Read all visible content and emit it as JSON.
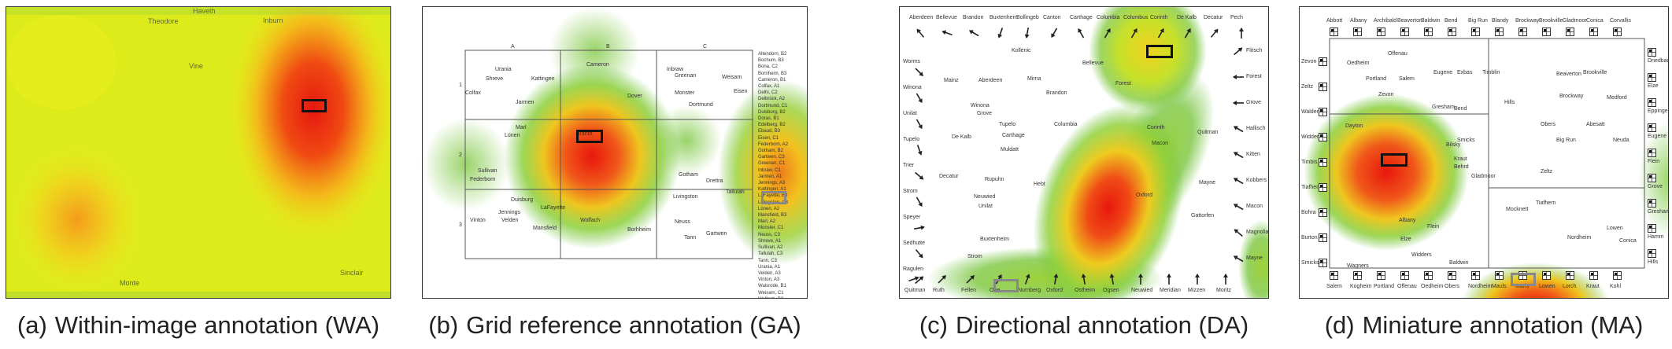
{
  "captions": {
    "a": {
      "tag": "(a)",
      "text": "Within-image annotation (WA)"
    },
    "b": {
      "tag": "(b)",
      "text": "Grid reference annotation (GA)"
    },
    "c": {
      "tag": "(c)",
      "text": "Directional annotation (DA)"
    },
    "d": {
      "tag": "(d)",
      "text": "Miniature annotation (MA)"
    }
  },
  "panel_a": {
    "labels": [
      "Haveth",
      "Theodore",
      "Inburn",
      "Monte",
      "Sinclair",
      "Vine"
    ]
  },
  "panel_b": {
    "columns": [
      "A",
      "B",
      "C"
    ],
    "rows": [
      "1",
      "2",
      "3"
    ],
    "cities": [
      "Urania",
      "Shreve",
      "Kattingen",
      "Cameron",
      "Inbraw",
      "Colfax",
      "Jarmen",
      "Dover",
      "Greenan",
      "Weisam",
      "Eisen",
      "Monster",
      "Dortmund",
      "Marl",
      "Lünen",
      "Sullivan",
      "Federborn",
      "Brandt",
      "Gotham",
      "Drettra",
      "Duisburg",
      "Jennings",
      "LaFayette",
      "Vinton",
      "Velden",
      "Mansfield",
      "Wolfach",
      "Borhheim",
      "Livingston",
      "Tallulah",
      "Neuss",
      "Tann",
      "Gartwen"
    ],
    "index": "Altendorn, B2\nBochum, B3\nBona, C2\nBornheim, B3\nCameron, B1\nColfax, A1\nDelhi, C2\nDelbrück, A2\nDortmund, C1\nDuisburg, B2\nDoras, B1\nEdelberg, B2\nEbaud, B3\nEisen, C1\nFederborn, A2\nGotham, B2\nGartwen, C3\nGreenan, C1\nInbraw, C1\nJarmen, A1\nJennings, A3\nKattingen, A1\nLaFayette, B3\nLivingston, C3\nLünen, A2\nMansfield, B3\nMarl, A2\nMonster, C1\nNeuss, C3\nShreve, A1\nSullivan, A2\nTallulah, C3\nTann, C3\nUrania, A1\nVelden, A3\nVinton, A3\nWalsrode, B1\nWeisam, C1\nWolfach, B3"
  },
  "panel_c": {
    "top": [
      "Aberdeen",
      "Bellevue",
      "Brandon",
      "Buxtenhern",
      "Bollingeb",
      "Canton",
      "Carthage",
      "Columbia",
      "Columbus",
      "Corinth",
      "De Kalb",
      "Decatur",
      "Pech"
    ],
    "left": [
      "Worms",
      "Winona",
      "Unilat",
      "Tupelo",
      "Trier",
      "Strom",
      "Speyer",
      "Sedhutte",
      "Ragulen"
    ],
    "right": [
      "Flitsch",
      "Forest",
      "Grove",
      "Hallisch",
      "Kitten",
      "Kobbers",
      "Macon",
      "Magnolia",
      "Mayne"
    ],
    "bottom": [
      "Quitman",
      "Ruth",
      "Fellen",
      "Ohe",
      "Nurnberg",
      "Oxford",
      "Ostheim",
      "Ogsen",
      "Neuwied",
      "Meridian",
      "Mizzen",
      "Moritz"
    ],
    "inner": [
      "Kollenic",
      "Bellevue",
      "Mainz",
      "Aberdeen",
      "Mirna",
      "Brandon",
      "Forest",
      "Winona",
      "Grove",
      "Tupelo",
      "Columbia",
      "De Kalb",
      "Carthage",
      "Muldatt",
      "Quitman",
      "Macon",
      "Decatur",
      "Rupuhn",
      "Hebt",
      "Neuwied",
      "Unilat",
      "Mayne",
      "Oxford",
      "Gattorfen",
      "Buxtenheim",
      "Strom",
      "Corinth"
    ]
  },
  "panel_d": {
    "top": [
      "Abbott",
      "Albany",
      "Archibald",
      "Beaverton",
      "Baldwin",
      "Bend",
      "Big Run",
      "Blandy",
      "Brockway",
      "Brookville",
      "Gladmoor",
      "Conica",
      "Corvallis"
    ],
    "left": [
      "Zevon",
      "Zeltz",
      "Walden",
      "Widders",
      "Timbis",
      "Tiafhern",
      "Bohra",
      "Burton",
      "Smicks"
    ],
    "right": [
      "Driedbach",
      "Elze",
      "Eppingen",
      "Eugene",
      "Flein",
      "Grove",
      "Gresham",
      "Hamm",
      "Hills"
    ],
    "bottom": [
      "Salem",
      "Kogheim",
      "Portland",
      "Offenau",
      "Oedheim",
      "Obers",
      "Nordheim",
      "Mauls",
      "Marls",
      "Lowen",
      "Lorch",
      "Kraut",
      "Kohl"
    ],
    "inner": [
      "Oedheim",
      "Offenau",
      "Portland",
      "Salem",
      "Eugene",
      "Exbas",
      "Timblin",
      "Beaverton",
      "Brookville",
      "Zevon",
      "Brockway",
      "Medford",
      "Gresham",
      "Bend",
      "Hills",
      "Dayton",
      "Obers",
      "Abesatt",
      "Smicks",
      "Bilsky",
      "Big Run",
      "Neuda",
      "Kraut",
      "Behrd",
      "Gladmoor",
      "Zeltz",
      "Tiafhern",
      "Mocknett",
      "Albany",
      "Flein",
      "Elze",
      "Lowen",
      "Nordheim",
      "Conica",
      "Wagners",
      "Widders",
      "Baldwin"
    ]
  }
}
